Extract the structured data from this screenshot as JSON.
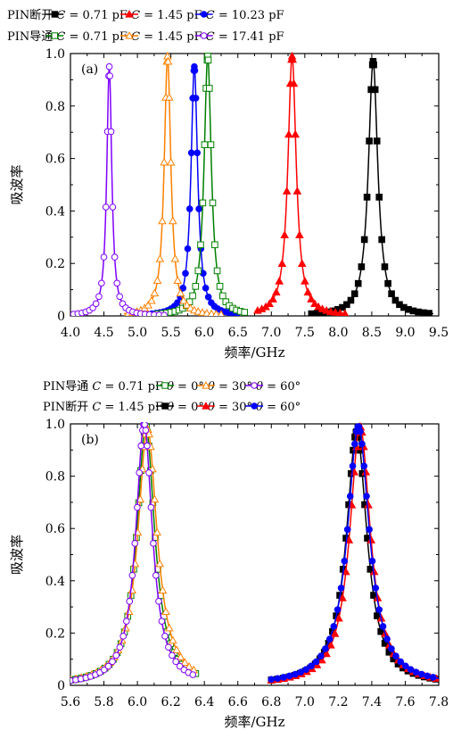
{
  "chart_data": [
    {
      "type": "line",
      "panel_label": "(a)",
      "xlabel": "频率/GHz",
      "ylabel": "吸波率",
      "xlim": [
        4.0,
        9.5
      ],
      "ylim": [
        0,
        1.0
      ],
      "xticks": [
        "4.0",
        "4.5",
        "5.0",
        "5.5",
        "6.0",
        "6.5",
        "7.0",
        "7.5",
        "8.0",
        "8.5",
        "9.0",
        "9.5"
      ],
      "yticks": [
        "0",
        "0.2",
        "0.4",
        "0.6",
        "0.8",
        "1.0"
      ],
      "legend_rows": [
        {
          "label": "PIN断开",
          "entries": [
            {
              "cap": "= 0.71 pF",
              "series": 0
            },
            {
              "cap": "= 1.45 pF",
              "series": 1
            },
            {
              "cap": "= 10.23 pF",
              "series": 2
            }
          ]
        },
        {
          "label": "PIN导通",
          "entries": [
            {
              "cap": "= 0.71 pF",
              "series": 3
            },
            {
              "cap": "= 1.45 pF",
              "series": 4
            },
            {
              "cap": "= 17.41 pF",
              "series": 5
            }
          ]
        }
      ],
      "series": [
        {
          "color": "#000000",
          "marker": "square",
          "filled": true,
          "f0": 8.52,
          "peak": 0.97,
          "hw": 0.085,
          "xrange": [
            7.6,
            9.42
          ]
        },
        {
          "color": "#ff0000",
          "marker": "triangle",
          "filled": true,
          "f0": 7.31,
          "peak": 0.99,
          "hw": 0.075,
          "xrange": [
            6.75,
            8.1
          ]
        },
        {
          "color": "#0000ff",
          "marker": "circle",
          "filled": true,
          "f0": 5.85,
          "peak": 0.95,
          "hw": 0.06,
          "xrange": [
            5.15,
            6.5
          ]
        },
        {
          "color": "#008000",
          "marker": "square",
          "filled": false,
          "f0": 6.05,
          "peak": 0.99,
          "hw": 0.065,
          "xrange": [
            5.3,
            6.65
          ]
        },
        {
          "color": "#ff8000",
          "marker": "triangle",
          "filled": false,
          "f0": 5.45,
          "peak": 0.99,
          "hw": 0.06,
          "xrange": [
            4.8,
            6.25
          ]
        },
        {
          "color": "#8000ff",
          "marker": "circle",
          "filled": false,
          "f0": 4.58,
          "peak": 0.95,
          "hw": 0.045,
          "xrange": [
            4.0,
            5.4
          ]
        }
      ]
    },
    {
      "type": "line",
      "panel_label": "(b)",
      "xlabel": "频率/GHz",
      "ylabel": "吸波率",
      "xlim": [
        5.6,
        7.8
      ],
      "ylim": [
        0,
        1.0
      ],
      "xticks": [
        "5.6",
        "5.8",
        "6.0",
        "6.2",
        "6.4",
        "6.6",
        "6.8",
        "7.0",
        "7.2",
        "7.4",
        "7.6",
        "7.8"
      ],
      "yticks": [
        "0",
        "0.2",
        "0.4",
        "0.6",
        "0.8",
        "1.0"
      ],
      "legend_rows": [
        {
          "label": "PIN导通",
          "cap": "= 0.71 pF",
          "entries": [
            {
              "theta": "= 0°",
              "series": 0
            },
            {
              "theta": "= 30°",
              "series": 1
            },
            {
              "theta": "= 60°",
              "series": 2
            }
          ]
        },
        {
          "label": "PIN断开",
          "cap": "= 1.45 pF",
          "entries": [
            {
              "theta": "= 0°",
              "series": 3
            },
            {
              "theta": "= 30°",
              "series": 4
            },
            {
              "theta": "= 60°",
              "series": 5
            }
          ]
        }
      ],
      "series": [
        {
          "color": "#008000",
          "marker": "square",
          "filled": false,
          "f0": 6.05,
          "peak": 0.99,
          "hw": 0.065,
          "xrange": [
            5.6,
            6.35
          ]
        },
        {
          "color": "#ff8000",
          "marker": "triangle",
          "filled": false,
          "f0": 6.06,
          "peak": 0.98,
          "hw": 0.07,
          "xrange": [
            5.6,
            6.35
          ]
        },
        {
          "color": "#8000ff",
          "marker": "circle",
          "filled": false,
          "f0": 6.04,
          "peak": 1.0,
          "hw": 0.06,
          "xrange": [
            5.6,
            6.35
          ]
        },
        {
          "color": "#000000",
          "marker": "square",
          "filled": true,
          "f0": 7.31,
          "peak": 0.97,
          "hw": 0.075,
          "xrange": [
            6.8,
            7.8
          ]
        },
        {
          "color": "#ff0000",
          "marker": "triangle",
          "filled": true,
          "f0": 7.33,
          "peak": 0.99,
          "hw": 0.075,
          "xrange": [
            6.8,
            7.8
          ]
        },
        {
          "color": "#0000ff",
          "marker": "circle",
          "filled": true,
          "f0": 7.32,
          "peak": 0.99,
          "hw": 0.08,
          "xrange": [
            6.8,
            7.8
          ]
        }
      ]
    }
  ]
}
